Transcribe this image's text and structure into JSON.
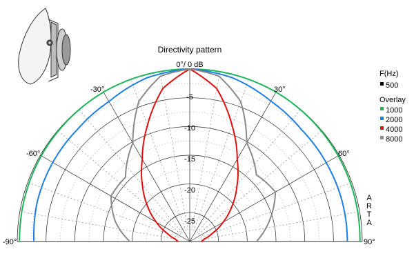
{
  "chart_data": {
    "type": "polar-half",
    "title": "Directivity pattern",
    "reference_label": "0°/ 0 dB",
    "side_text": [
      "A",
      "R",
      "T",
      "A"
    ],
    "radial_range_db": [
      -30,
      0
    ],
    "radial_ticks": [
      {
        "value": -5,
        "label": "-5"
      },
      {
        "value": -10,
        "label": "-10"
      },
      {
        "value": -15,
        "label": "-15"
      },
      {
        "value": -20,
        "label": "-20"
      },
      {
        "value": -25,
        "label": "-25"
      }
    ],
    "angle_labels": [
      {
        "angle": -90,
        "label": "-90°"
      },
      {
        "angle": -60,
        "label": "-60°"
      },
      {
        "angle": -30,
        "label": "-30°"
      },
      {
        "angle": 30,
        "label": "30°"
      },
      {
        "angle": 60,
        "label": "60°"
      },
      {
        "angle": 90,
        "label": "90°"
      }
    ],
    "grid": true,
    "legend": {
      "position": "right",
      "header": "F(Hz)",
      "base": {
        "name": "500",
        "color": "#000000"
      },
      "overlay_header": "Overlay",
      "items": [
        {
          "name": "1000",
          "color": "#1fb55a"
        },
        {
          "name": "2000",
          "color": "#1e7fe0"
        },
        {
          "name": "4000",
          "color": "#e01010"
        },
        {
          "name": "8000",
          "color": "#8a8a8a"
        }
      ]
    },
    "series": [
      {
        "name": "1000",
        "color": "#1fb55a",
        "angles": [
          -90,
          -75,
          -60,
          -45,
          -30,
          -15,
          0,
          15,
          30,
          45,
          60,
          75,
          90
        ],
        "values": [
          -0.4,
          -0.3,
          -0.2,
          -0.1,
          0,
          0,
          0,
          0,
          0,
          -0.1,
          -0.2,
          -0.3,
          -0.4
        ]
      },
      {
        "name": "2000",
        "color": "#1e7fe0",
        "angles": [
          -90,
          -75,
          -60,
          -45,
          -30,
          -15,
          0,
          15,
          30,
          45,
          60,
          75,
          90
        ],
        "values": [
          -2.9,
          -2.6,
          -2.5,
          -2.4,
          -1.9,
          -0.6,
          0,
          -0.6,
          -1.8,
          -2.5,
          -2.6,
          -2.6,
          -2.6
        ]
      },
      {
        "name": "4000",
        "color": "#e01010",
        "angles": [
          -90,
          -80,
          -70,
          -60,
          -50,
          -40,
          -30,
          -20,
          -10,
          0,
          10,
          20,
          30,
          40,
          50,
          60,
          70,
          80,
          90
        ],
        "values": [
          -28,
          -27.4,
          -25.8,
          -23.3,
          -20.4,
          -17.2,
          -13.5,
          -8.5,
          -3,
          0,
          -3,
          -8.5,
          -13.5,
          -17.2,
          -20.4,
          -23.3,
          -25.8,
          -27.4,
          -28
        ]
      },
      {
        "name": "8000",
        "color": "#8a8a8a",
        "angles": [
          -90,
          -75,
          -60,
          -45,
          -30,
          -20,
          -10,
          0,
          10,
          20,
          30,
          45,
          60,
          75,
          90
        ],
        "values": [
          -19.6,
          -16.6,
          -14.2,
          -14.2,
          -10.2,
          -4.1,
          -0.8,
          0,
          -0.8,
          -4.1,
          -10.2,
          -13.6,
          -12.8,
          -15.6,
          -18.4
        ]
      }
    ]
  }
}
